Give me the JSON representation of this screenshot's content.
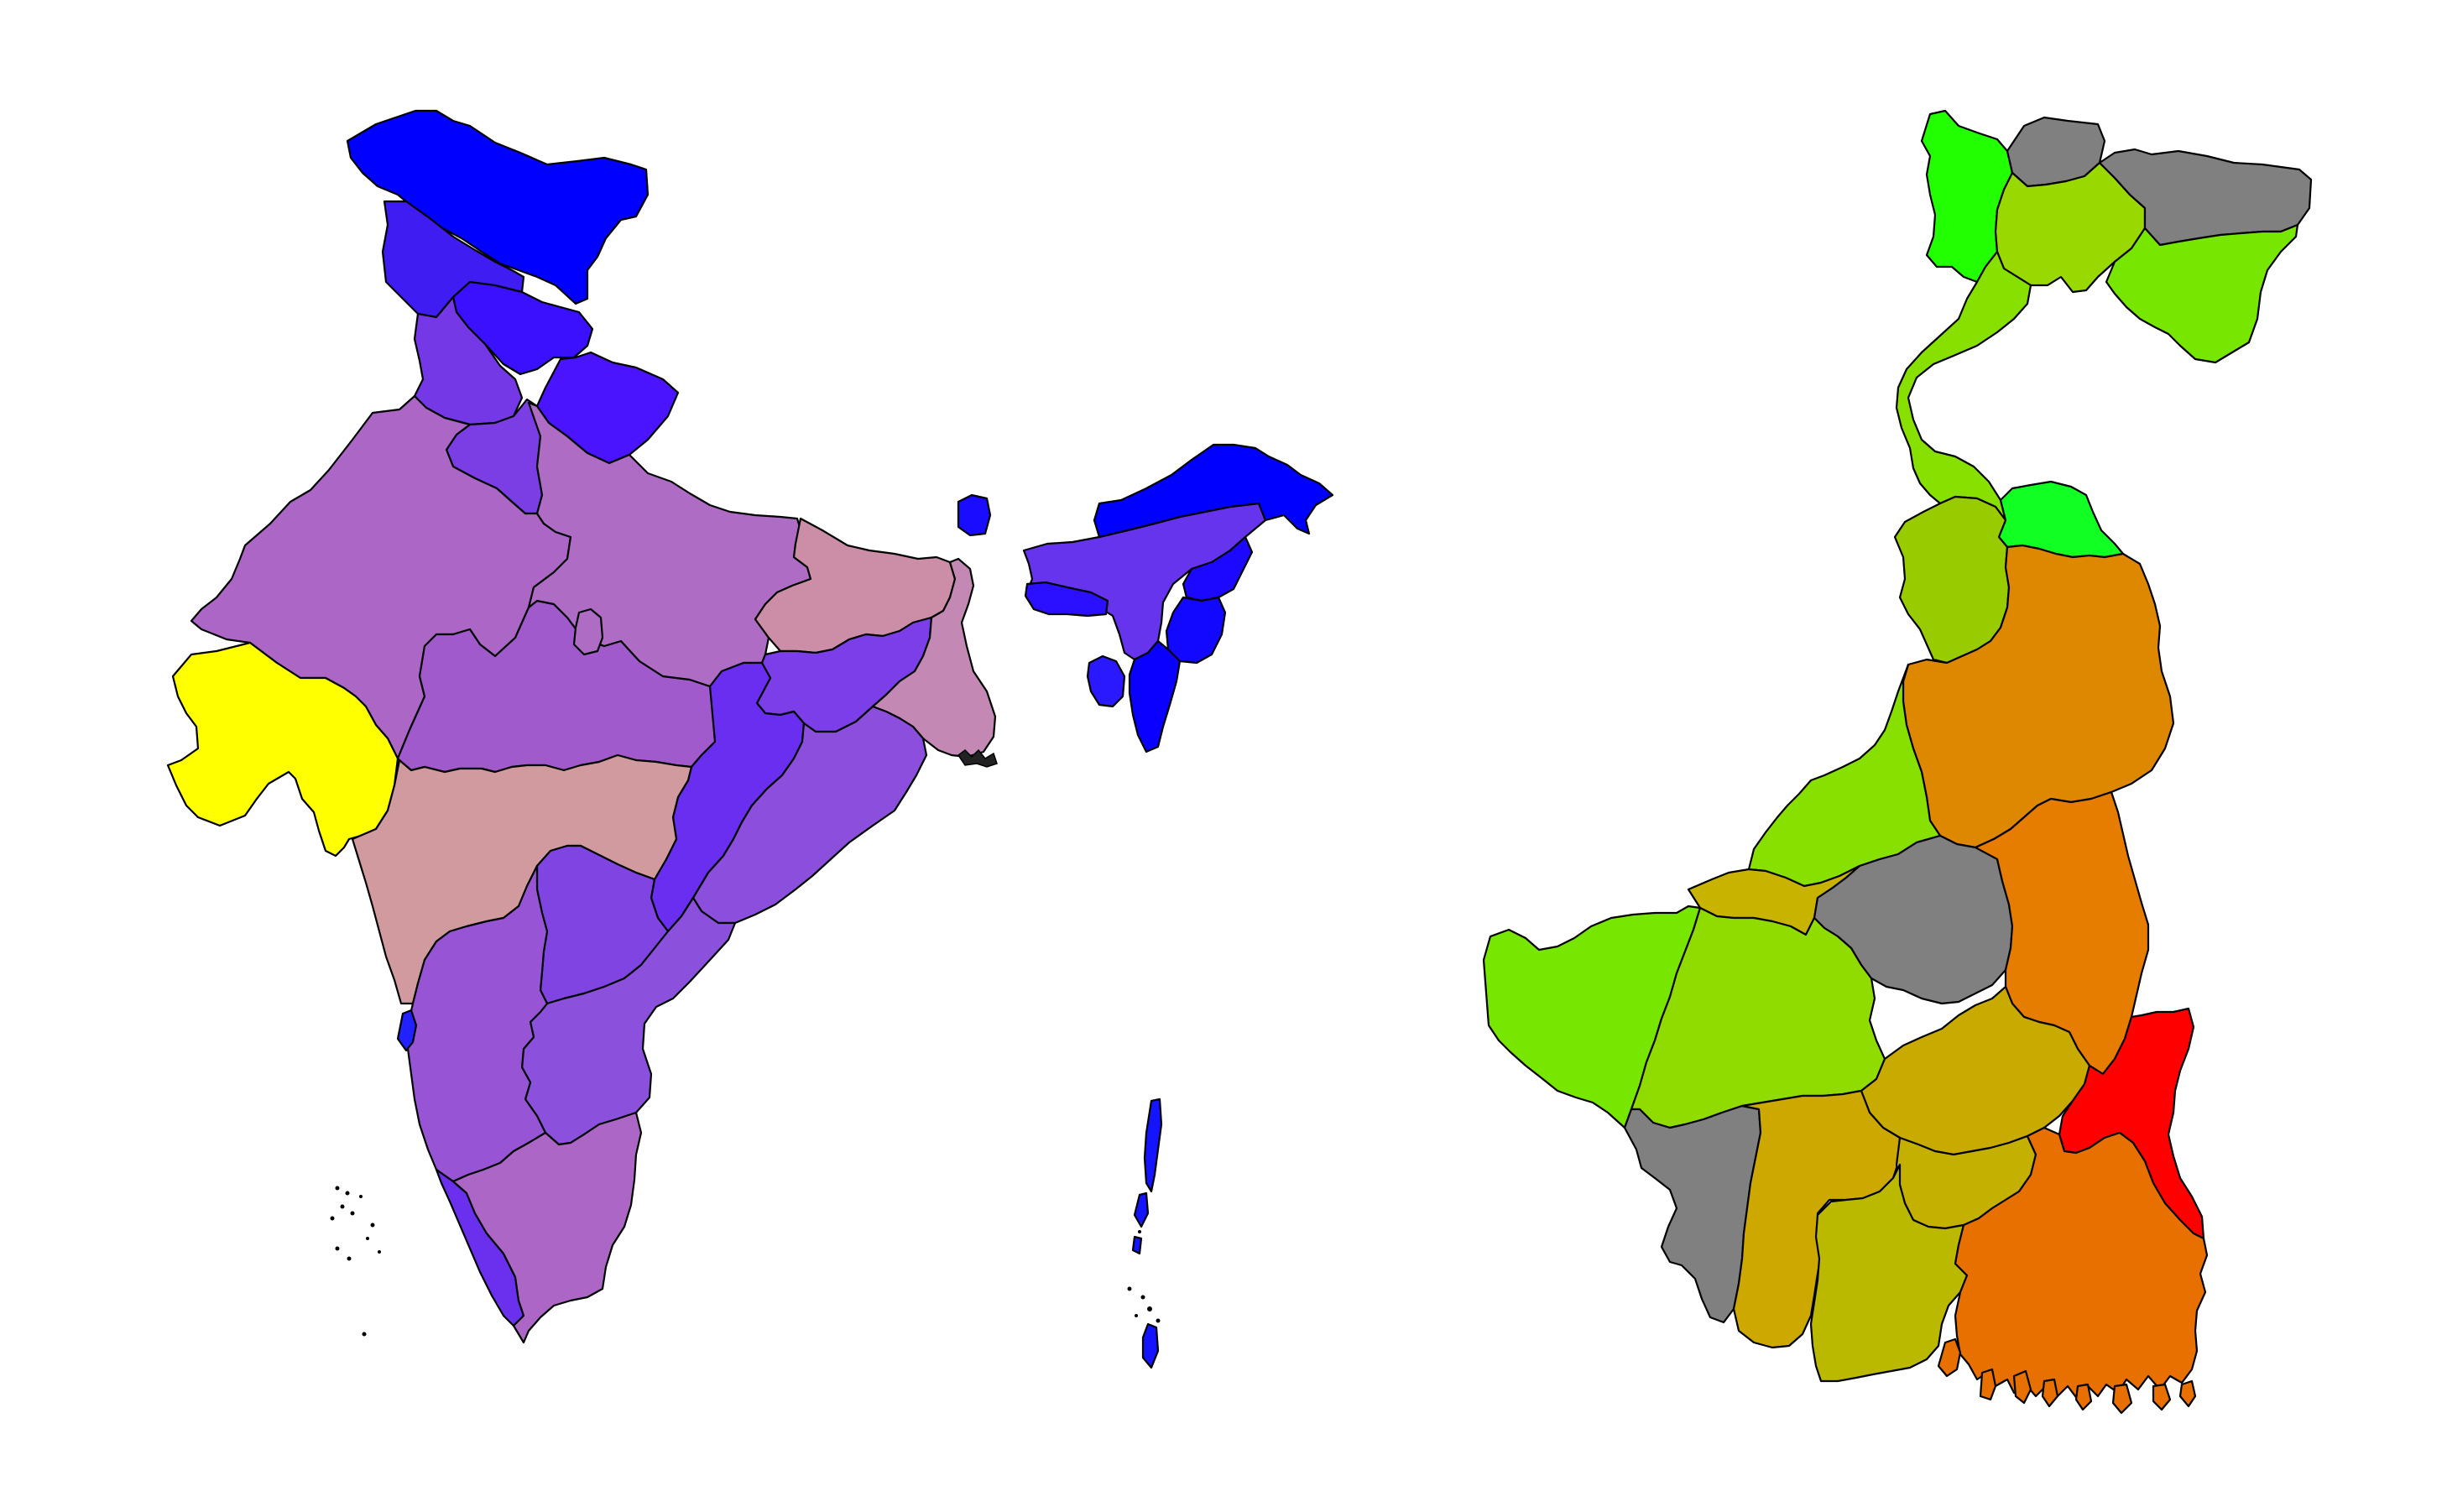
{
  "maps": [
    {
      "name": "india",
      "border_color": "#000000",
      "regions": [
        {
          "id": "jammu-kashmir",
          "fill": "#0000ff"
        },
        {
          "id": "ladakh-upper",
          "fill": "#3f1cf2"
        },
        {
          "id": "himachal",
          "fill": "#3a10ff"
        },
        {
          "id": "punjab",
          "fill": "#7438e6"
        },
        {
          "id": "uttarakhand",
          "fill": "#4a14ff"
        },
        {
          "id": "haryana",
          "fill": "#7a3ee4"
        },
        {
          "id": "rajasthan",
          "fill": "#ab66c6"
        },
        {
          "id": "uttar-pradesh",
          "fill": "#ffff00"
        },
        {
          "id": "gujarat",
          "fill": "#a05acc"
        },
        {
          "id": "madhya-pradesh",
          "fill": "#ae6cc4"
        },
        {
          "id": "bihar",
          "fill": "#cc8ea7"
        },
        {
          "id": "jharkhand",
          "fill": "#7b3ee8"
        },
        {
          "id": "west-bengal",
          "fill": "#c388b4"
        },
        {
          "id": "chhattisgarh",
          "fill": "#6a2ef0"
        },
        {
          "id": "odisha",
          "fill": "#8c4edc"
        },
        {
          "id": "maharashtra",
          "fill": "#d19a9e"
        },
        {
          "id": "telangana",
          "fill": "#8044e2"
        },
        {
          "id": "andhra-pradesh",
          "fill": "#8b50dc"
        },
        {
          "id": "karnataka",
          "fill": "#9755d6"
        },
        {
          "id": "goa",
          "fill": "#2222ff"
        },
        {
          "id": "kerala",
          "fill": "#6a30ee"
        },
        {
          "id": "tamil-nadu",
          "fill": "#ab66c6"
        },
        {
          "id": "sikkim",
          "fill": "#1a0cff"
        },
        {
          "id": "assam",
          "fill": "#6634ec"
        },
        {
          "id": "arunachal",
          "fill": "#0000ff"
        },
        {
          "id": "meghalaya",
          "fill": "#2a10ff"
        },
        {
          "id": "nagaland",
          "fill": "#1c08ff"
        },
        {
          "id": "manipur",
          "fill": "#1208ff"
        },
        {
          "id": "mizoram",
          "fill": "#0a00ff"
        },
        {
          "id": "tripura",
          "fill": "#2a18ff"
        },
        {
          "id": "andaman",
          "fill": "#1414ff"
        }
      ]
    },
    {
      "name": "west-bengal-districts",
      "border_color": "#000000",
      "regions": [
        {
          "id": "darjeeling",
          "fill": "#22ff00"
        },
        {
          "id": "kalimpong",
          "fill": "#808080"
        },
        {
          "id": "jalpaiguri",
          "fill": "#99d800"
        },
        {
          "id": "alipurduar",
          "fill": "#808080"
        },
        {
          "id": "coochbehar",
          "fill": "#77e600"
        },
        {
          "id": "uttar-dinajpur",
          "fill": "#88e000"
        },
        {
          "id": "dakshin-dinajpur",
          "fill": "#11ff22"
        },
        {
          "id": "malda",
          "fill": "#99cc00"
        },
        {
          "id": "murshidabad",
          "fill": "#dd8800"
        },
        {
          "id": "birbhum",
          "fill": "#88e000"
        },
        {
          "id": "nadia",
          "fill": "#c8b400"
        },
        {
          "id": "paschim-bardhaman",
          "fill": "#808080"
        },
        {
          "id": "purba-bardhaman",
          "fill": "#e67c00"
        },
        {
          "id": "purulia",
          "fill": "#77e600"
        },
        {
          "id": "bankura",
          "fill": "#90dc00"
        },
        {
          "id": "hooghly",
          "fill": "#c8aa00"
        },
        {
          "id": "north-24-parganas",
          "fill": "#ff0000"
        },
        {
          "id": "jhargram",
          "fill": "#808080"
        },
        {
          "id": "paschim-medinipur",
          "fill": "#cca800"
        },
        {
          "id": "howrah",
          "fill": "#c4b000"
        },
        {
          "id": "purba-medinipur",
          "fill": "#bbb800"
        },
        {
          "id": "south-24-parganas",
          "fill": "#e87000"
        },
        {
          "id": "kolkata",
          "fill": "#e0a000"
        }
      ]
    }
  ]
}
